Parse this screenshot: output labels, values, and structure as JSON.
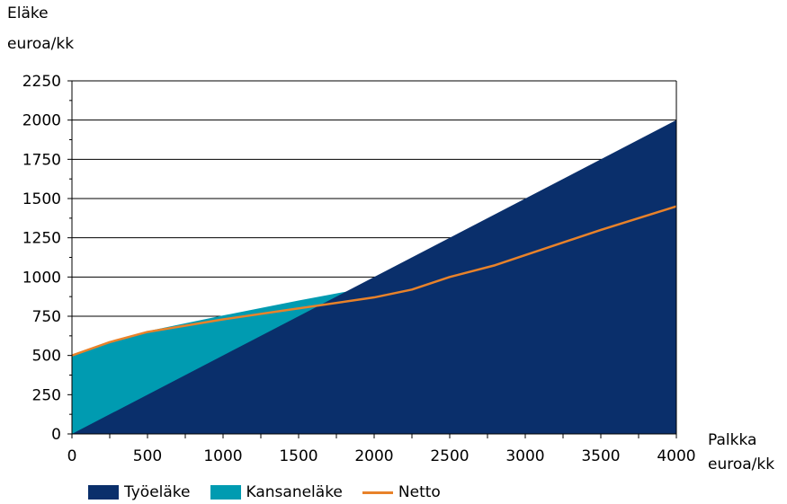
{
  "chart_data": {
    "type": "area",
    "y_axis_title": [
      "Eläke",
      "euroa/kk"
    ],
    "x_axis_title": [
      "Palkka",
      "euroa/kk"
    ],
    "xlim": [
      0,
      4000
    ],
    "ylim": [
      0,
      2250
    ],
    "x_ticks": [
      0,
      500,
      1000,
      1500,
      2000,
      2500,
      3000,
      3500,
      4000
    ],
    "x_tick_labels": [
      "0",
      "500",
      "1000",
      "1500",
      "2000",
      "2500",
      "3000",
      "3500",
      "4000"
    ],
    "y_ticks": [
      0,
      250,
      500,
      750,
      1000,
      1250,
      1500,
      1750,
      2000,
      2250
    ],
    "y_tick_labels": [
      "0",
      "250",
      "500",
      "750",
      "1000",
      "1250",
      "1500",
      "1750",
      "2000",
      "2250"
    ],
    "grid": "horizontal",
    "legend_position": "bottom",
    "series": [
      {
        "name": "Työeläke",
        "kind": "area",
        "color": "#0a2f6b",
        "x": [
          0,
          4000
        ],
        "y": [
          0,
          2000
        ]
      },
      {
        "name": "Kansaneläke",
        "kind": "area-total",
        "color": "#009bb1",
        "x": [
          0,
          250,
          500,
          1000,
          1500,
          2000,
          2250
        ],
        "y": [
          500,
          580,
          655,
          755,
          850,
          940,
          1125
        ]
      },
      {
        "name": "Netto",
        "kind": "line",
        "color": "#e8822a",
        "x": [
          0,
          250,
          500,
          1000,
          1500,
          2000,
          2250,
          2500,
          2800,
          3000,
          3500,
          4000
        ],
        "y": [
          500,
          585,
          650,
          730,
          800,
          870,
          920,
          1000,
          1075,
          1140,
          1300,
          1450
        ]
      }
    ]
  }
}
